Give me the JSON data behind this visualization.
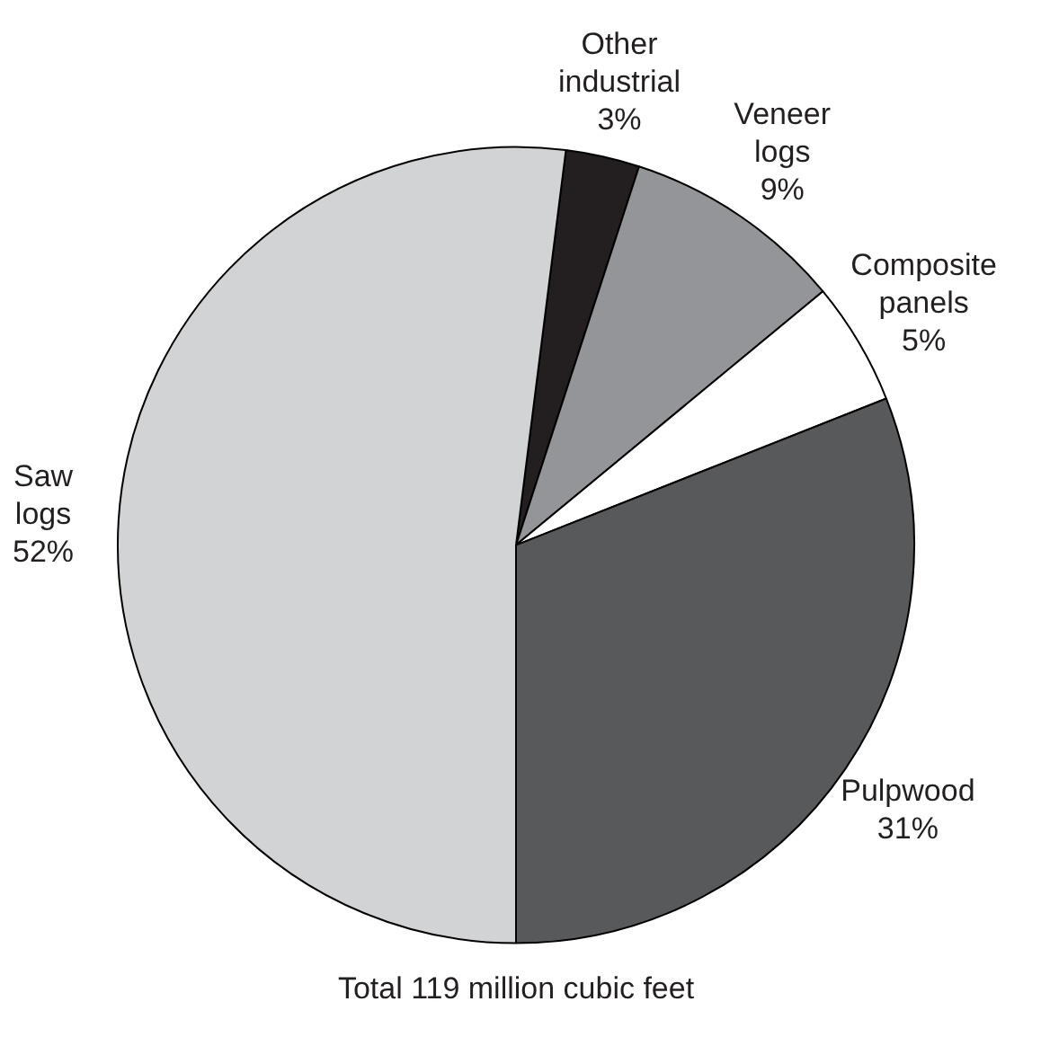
{
  "chart_data": {
    "type": "pie",
    "title": "Total 119 million cubic feet",
    "categories": [
      "Other industrial",
      "Veneer logs",
      "Composite panels",
      "Pulpwood",
      "Saw logs"
    ],
    "values": [
      3,
      9,
      5,
      31,
      52
    ],
    "value_labels": [
      "3%",
      "9%",
      "5%",
      "31%",
      "52%"
    ],
    "colors": [
      "#231f20",
      "#939598",
      "#ffffff",
      "#58595b",
      "#d1d3d4"
    ],
    "legend": false
  }
}
